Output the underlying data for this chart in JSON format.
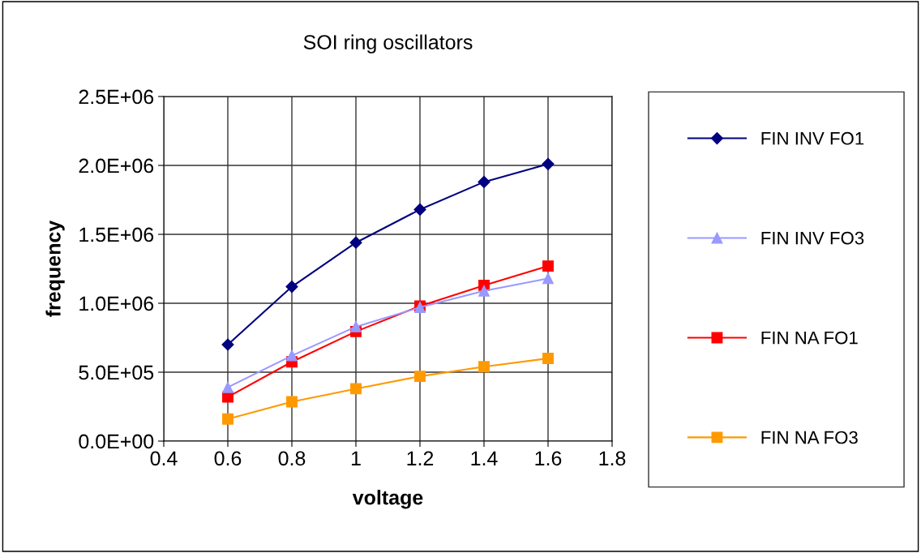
{
  "chart_data": {
    "type": "line",
    "title": "SOI ring oscillators",
    "xlabel": "voltage",
    "ylabel": "frequency",
    "x": [
      0.6,
      0.8,
      1.0,
      1.2,
      1.4,
      1.6
    ],
    "series": [
      {
        "name": "FIN INV FO1",
        "color": "#000080",
        "marker": "diamond",
        "values": [
          700000,
          1120000,
          1440000,
          1680000,
          1880000,
          2010000
        ]
      },
      {
        "name": "FIN INV FO3",
        "color": "#9999ff",
        "marker": "triangle",
        "values": [
          390000,
          620000,
          830000,
          970000,
          1090000,
          1180000
        ]
      },
      {
        "name": "FIN NA FO1",
        "color": "#ff0000",
        "marker": "square",
        "values": [
          320000,
          575000,
          795000,
          980000,
          1130000,
          1270000
        ]
      },
      {
        "name": "FIN NA FO3",
        "color": "#ff9900",
        "marker": "square",
        "values": [
          160000,
          285000,
          380000,
          470000,
          540000,
          600000
        ]
      }
    ],
    "xlim": [
      0.4,
      1.8
    ],
    "xticks": [
      0.4,
      0.6,
      0.8,
      1,
      1.2,
      1.4,
      1.6,
      1.8
    ],
    "ylim": [
      0,
      2500000
    ],
    "yticks": [
      {
        "value": 0,
        "label": "0.0E+00"
      },
      {
        "value": 500000,
        "label": "5.0E+05"
      },
      {
        "value": 1000000,
        "label": "1.0E+06"
      },
      {
        "value": 1500000,
        "label": "1.5E+06"
      },
      {
        "value": 2000000,
        "label": "2.0E+06"
      },
      {
        "value": 2500000,
        "label": "2.5E+06"
      }
    ],
    "grid": true,
    "legend": "right",
    "line_style": "solid"
  }
}
